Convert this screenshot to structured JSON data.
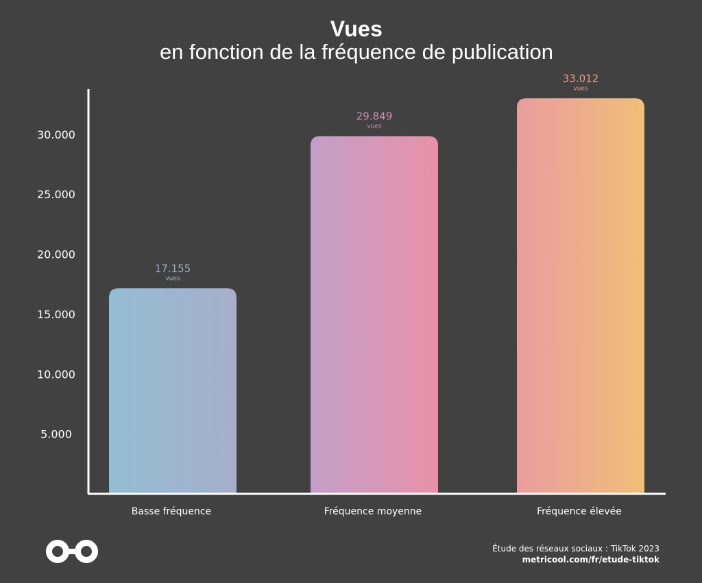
{
  "chart_data": {
    "type": "bar",
    "title": "Vues",
    "subtitle": "en fonction de la fréquence de publication",
    "categories": [
      "Basse fréquence",
      "Fréquence moyenne",
      "Fréquence élevée"
    ],
    "values": [
      17155,
      29849,
      33012
    ],
    "value_labels": [
      "17.155",
      "29.849",
      "33.012"
    ],
    "unit_label": "vues",
    "yticks": [
      {
        "value": 5000,
        "label": "5.000"
      },
      {
        "value": 10000,
        "label": "10.000"
      },
      {
        "value": 15000,
        "label": "15.000"
      },
      {
        "value": 20000,
        "label": "20.000"
      },
      {
        "value": 25000,
        "label": "25.000"
      },
      {
        "value": 30000,
        "label": "30.000"
      }
    ],
    "ylim": [
      0,
      34000
    ],
    "grid": false,
    "bar_gradients": [
      [
        "#94bdd3",
        "#a6aecb"
      ],
      [
        "#c39fc8",
        "#e891a8"
      ],
      [
        "#ea9c9e",
        "#efbf78"
      ]
    ],
    "label_colors": [
      "#a3adc4",
      "#d08fb0",
      "#e59e8e"
    ]
  },
  "footer": {
    "source": "Étude des réseaux sociaux : TikTok 2023",
    "url": "metricool.com/fr/etude-tiktok"
  },
  "logo": {
    "icon": "metricool-infinity-icon"
  }
}
